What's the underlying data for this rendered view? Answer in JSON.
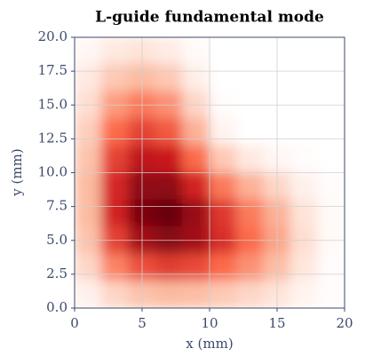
{
  "chart_data": {
    "type": "heatmap",
    "title": "L-guide fundamental mode",
    "x_label": "x (mm)",
    "y_label": "y (mm)",
    "x": [
      1,
      3,
      5,
      7,
      9,
      11,
      13,
      15,
      17,
      19
    ],
    "y": [
      19,
      17,
      15,
      13,
      11,
      9,
      7,
      5,
      3,
      1
    ],
    "z": [
      [
        0.03,
        0.08,
        0.1,
        0.07,
        0.02,
        0,
        0,
        0,
        0,
        0
      ],
      [
        0.08,
        0.2,
        0.25,
        0.2,
        0.06,
        0,
        0,
        0,
        0,
        0
      ],
      [
        0.12,
        0.35,
        0.45,
        0.38,
        0.15,
        0.01,
        0,
        0,
        0,
        0
      ],
      [
        0.18,
        0.5,
        0.62,
        0.55,
        0.28,
        0.04,
        0,
        0,
        0,
        0
      ],
      [
        0.22,
        0.62,
        0.78,
        0.75,
        0.5,
        0.2,
        0.08,
        0.03,
        0.01,
        0
      ],
      [
        0.25,
        0.7,
        0.9,
        0.9,
        0.72,
        0.45,
        0.28,
        0.15,
        0.05,
        0.01
      ],
      [
        0.25,
        0.72,
        0.95,
        1.0,
        0.88,
        0.65,
        0.45,
        0.28,
        0.1,
        0.02
      ],
      [
        0.22,
        0.62,
        0.85,
        0.92,
        0.85,
        0.68,
        0.5,
        0.32,
        0.12,
        0.02
      ],
      [
        0.15,
        0.42,
        0.58,
        0.64,
        0.6,
        0.5,
        0.38,
        0.24,
        0.09,
        0.01
      ],
      [
        0.05,
        0.15,
        0.22,
        0.25,
        0.24,
        0.2,
        0.15,
        0.1,
        0.04,
        0.01
      ]
    ],
    "colormap": [
      "#ffffff",
      "#fcbba1",
      "#fb6a4a",
      "#cb181d",
      "#67000d"
    ],
    "xlim": [
      0,
      20
    ],
    "ylim": [
      0,
      20
    ],
    "xticks": [
      0,
      5,
      10,
      15,
      20
    ],
    "yticks": [
      {
        "value": 0,
        "label": "0.0"
      },
      {
        "value": 2.5,
        "label": "2.5"
      },
      {
        "value": 5,
        "label": "5.0"
      },
      {
        "value": 7.5,
        "label": "7.5"
      },
      {
        "value": 10,
        "label": "10.0"
      },
      {
        "value": 12.5,
        "label": "12.5"
      },
      {
        "value": 15,
        "label": "15.0"
      },
      {
        "value": 17.5,
        "label": "17.5"
      },
      {
        "value": 20,
        "label": "20.0"
      }
    ],
    "grid": true
  }
}
